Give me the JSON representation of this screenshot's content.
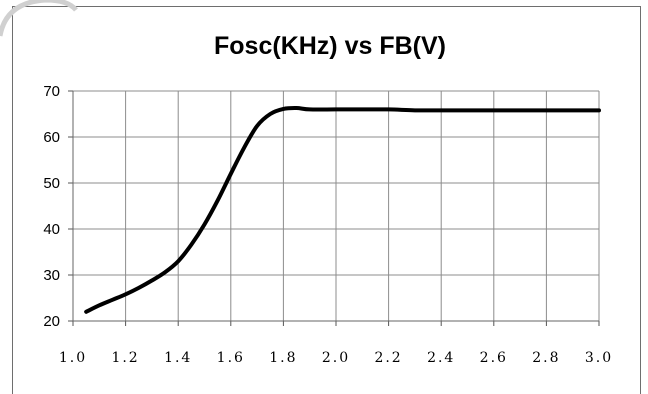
{
  "chart_data": {
    "type": "line",
    "title": "Fosc(KHz) vs FB(V)",
    "xlabel": "",
    "ylabel": "",
    "xlim": [
      1.0,
      3.0
    ],
    "ylim": [
      20,
      70
    ],
    "x_ticks": [
      "1.0",
      "1.2",
      "1.4",
      "1.6",
      "1.8",
      "2.0",
      "2.2",
      "2.4",
      "2.6",
      "2.8",
      "3.0"
    ],
    "y_ticks": [
      "20",
      "30",
      "40",
      "50",
      "60",
      "70"
    ],
    "grid": true,
    "series": [
      {
        "color": "#000000",
        "points": [
          [
            1.05,
            22.0
          ],
          [
            1.1,
            23.4
          ],
          [
            1.15,
            24.6
          ],
          [
            1.2,
            25.8
          ],
          [
            1.25,
            27.2
          ],
          [
            1.3,
            28.8
          ],
          [
            1.35,
            30.6
          ],
          [
            1.4,
            33.0
          ],
          [
            1.45,
            36.6
          ],
          [
            1.5,
            41.0
          ],
          [
            1.55,
            46.2
          ],
          [
            1.6,
            52.0
          ],
          [
            1.65,
            57.6
          ],
          [
            1.7,
            62.4
          ],
          [
            1.75,
            65.0
          ],
          [
            1.8,
            66.1
          ],
          [
            1.85,
            66.3
          ],
          [
            1.9,
            66.0
          ],
          [
            2.0,
            66.0
          ],
          [
            2.1,
            66.0
          ],
          [
            2.2,
            66.0
          ],
          [
            2.3,
            65.8
          ],
          [
            2.4,
            65.8
          ],
          [
            2.6,
            65.8
          ],
          [
            2.8,
            65.8
          ],
          [
            3.0,
            65.8
          ]
        ]
      }
    ]
  }
}
